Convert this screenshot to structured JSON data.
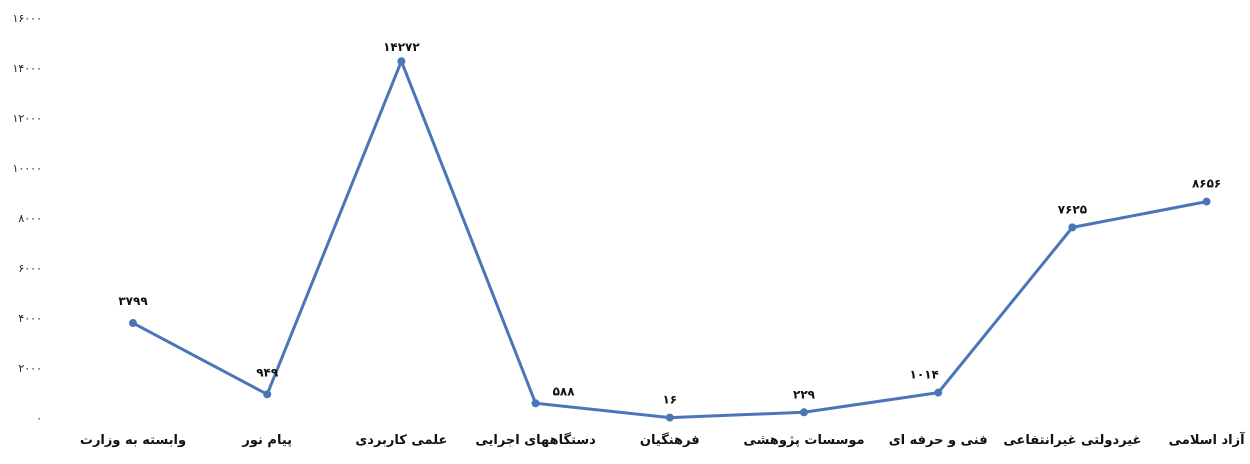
{
  "chart_data": {
    "type": "line",
    "title": "",
    "xlabel": "",
    "ylabel": "",
    "ylim": [
      0,
      16000
    ],
    "yticks": [
      0,
      2000,
      4000,
      6000,
      8000,
      10000,
      12000,
      14000,
      16000
    ],
    "ytick_labels": [
      "۰",
      "۲۰۰۰",
      "۴۰۰۰",
      "۶۰۰۰",
      "۸۰۰۰",
      "۱۰۰۰۰",
      "۱۲۰۰۰",
      "۱۴۰۰۰",
      "۱۶۰۰۰"
    ],
    "grid": false,
    "legend": "none",
    "line_color": "#4a76b8",
    "categories": [
      "وابسته به وزارت",
      "پیام نور",
      "علمی کاربردی",
      "دستگاههای اجرایی",
      "فرهنگیان",
      "موسسات پژوهشی",
      "فنی و حرفه ای",
      "غیردولتی غیرانتفاعی",
      "آزاد اسلامی"
    ],
    "values": [
      3799,
      949,
      14272,
      588,
      16,
      229,
      1014,
      7625,
      8656
    ],
    "value_labels": [
      "۳۷۹۹",
      "۹۴۹",
      "۱۴۲۷۲",
      "۵۸۸",
      "۱۶",
      "۲۲۹",
      "۱۰۱۴",
      "۷۶۲۵",
      "۸۶۵۶"
    ]
  }
}
